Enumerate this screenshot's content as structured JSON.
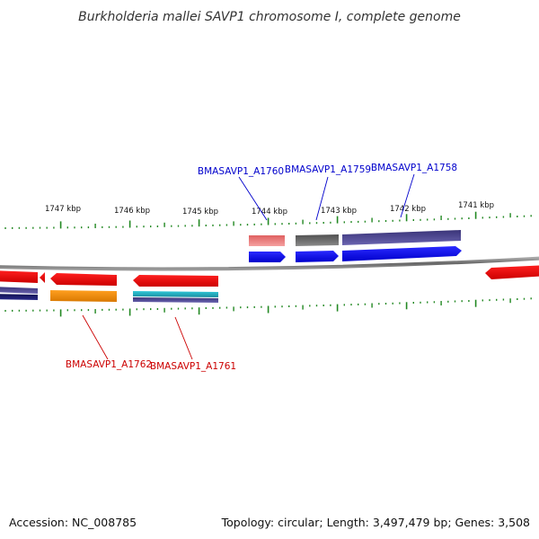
{
  "title": "Burkholderia mallei SAVP1 chromosome I, complete genome",
  "footer": {
    "accession": "Accession: NC_008785",
    "summary": "Topology: circular; Length: 3,497,479 bp; Genes: 3,508"
  },
  "scale_labels": [
    "1747 kbp",
    "1746 kbp",
    "1745 kbp",
    "1744 kbp",
    "1743 kbp",
    "1742 kbp",
    "1741 kbp"
  ],
  "gene_labels": {
    "forward": [
      "BMASAVP1_A1760",
      "BMASAVP1_A1759",
      "BMASAVP1_A1758"
    ],
    "reverse": [
      "BMASAVP1_A1762",
      "BMASAVP1_A1761"
    ]
  },
  "colors": {
    "forward_label": "#0000cc",
    "reverse_label": "#cc0000",
    "backbone": "#888888",
    "tick": "#228822",
    "gene_forward": "#0000ee",
    "gene_reverse": "#ee0000",
    "cog_purple": "#4a4690",
    "cog_grey": "#6a6a6a",
    "cog_pink": "#f08080",
    "cog_orange": "#f5930a",
    "cog_teal": "#2ab8c8",
    "cog_navy": "#1a1a6a"
  }
}
